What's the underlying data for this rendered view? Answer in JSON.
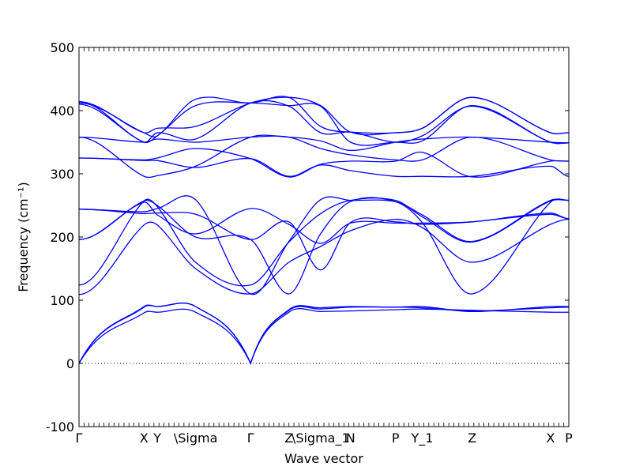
{
  "chart_data": {
    "type": "line",
    "title": "",
    "xlabel": "Wave vector",
    "ylabel": "Frequency (cm⁻¹)",
    "ylim": [
      -100,
      500
    ],
    "yticks": [
      -100,
      0,
      100,
      200,
      300,
      400,
      500
    ],
    "zero_line": "dotted",
    "grid": false,
    "legend": "none",
    "colors": {
      "bands": "#0000ff",
      "axes": "#000000",
      "zero_line": "#000000"
    },
    "xlim": [
      0,
      29.4
    ],
    "high_symmetry_points": [
      {
        "label": "Γ",
        "x": 0
      },
      {
        "label": "X",
        "x": 3.9
      },
      {
        "label": "Y",
        "x": 4.7
      },
      {
        "label": "\\Sigma",
        "x": 7.0
      },
      {
        "label": "Γ",
        "x": 10.3
      },
      {
        "label": "Z",
        "x": 12.6
      },
      {
        "label": "\\Sigma_1",
        "x": 14.5
      },
      {
        "label": "N",
        "x": 16.3
      },
      {
        "label": "P",
        "x": 19.0
      },
      {
        "label": "Y_1",
        "x": 20.6
      },
      {
        "label": "Z",
        "x": 23.6
      },
      {
        "label": "X",
        "x": 28.3
      },
      {
        "label": "P",
        "x": 29.4
      }
    ],
    "x": [
      0,
      3.9,
      4.7,
      7.0,
      10.3,
      12.6,
      14.5,
      16.3,
      19.0,
      20.6,
      23.6,
      28.3,
      29.4
    ],
    "series": [
      {
        "values": [
          0,
          80,
          81,
          81,
          0,
          81,
          82,
          83,
          85,
          86,
          84,
          81,
          81
        ]
      },
      {
        "values": [
          0,
          89,
          90,
          90,
          0,
          85,
          88,
          90,
          89,
          90,
          82,
          90,
          90
        ]
      },
      {
        "values": [
          0,
          90,
          90,
          90,
          0,
          84,
          86,
          89,
          89,
          88,
          83,
          88,
          89
        ]
      },
      {
        "values": [
          109,
          219,
          219,
          150,
          110,
          160,
          185,
          210,
          228,
          215,
          160,
          220,
          228
        ]
      },
      {
        "values": [
          124,
          257,
          248,
          160,
          124,
          192,
          237,
          258,
          258,
          232,
          192,
          257,
          258
        ]
      },
      {
        "values": [
          196,
          257,
          250,
          200,
          196,
          110,
          205,
          256,
          256,
          223,
          110,
          255,
          258
        ]
      },
      {
        "values": [
          196,
          255,
          235,
          205,
          245,
          220,
          190,
          222,
          222,
          222,
          224,
          238,
          229
        ]
      },
      {
        "values": [
          244,
          237,
          238,
          236,
          196,
          224,
          148,
          223,
          224,
          220,
          224,
          236,
          229
        ]
      },
      {
        "values": [
          244,
          240,
          245,
          259,
          110,
          193,
          259,
          258,
          256,
          235,
          193,
          258,
          258
        ]
      },
      {
        "values": [
          325,
          321,
          321,
          310,
          324,
          296,
          314,
          305,
          296,
          296,
          296,
          312,
          296
        ]
      },
      {
        "values": [
          325,
          322,
          325,
          340,
          324,
          295,
          315,
          320,
          320,
          334,
          295,
          320,
          320
        ]
      },
      {
        "values": [
          358,
          296,
          297,
          312,
          358,
          358,
          352,
          337,
          350,
          355,
          358,
          350,
          349
        ]
      },
      {
        "values": [
          358,
          350,
          355,
          350,
          358,
          358,
          340,
          330,
          322,
          322,
          358,
          322,
          320
        ]
      },
      {
        "values": [
          414,
          350,
          365,
          355,
          412,
          407,
          365,
          366,
          350,
          360,
          407,
          350,
          349
        ]
      },
      {
        "values": [
          414,
          365,
          372,
          375,
          412,
          421,
          408,
          366,
          365,
          372,
          421,
          365,
          365
        ]
      },
      {
        "values": [
          412,
          365,
          360,
          418,
          412,
          421,
          375,
          366,
          365,
          372,
          421,
          365,
          365
        ]
      },
      {
        "values": [
          410,
          350,
          360,
          408,
          412,
          408,
          407,
          350,
          350,
          352,
          408,
          350,
          349
        ]
      }
    ]
  }
}
